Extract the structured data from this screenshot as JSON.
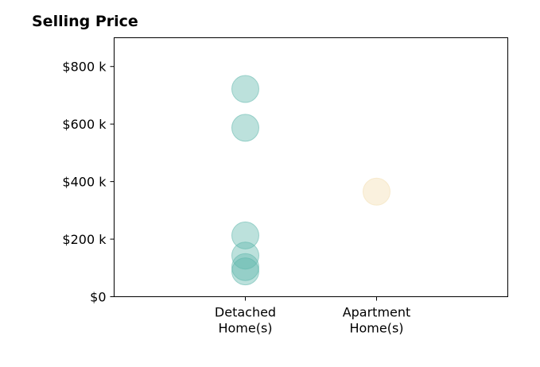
{
  "chart_data": {
    "type": "scatter",
    "title": "Selling Price",
    "xlabel": "",
    "ylabel": "",
    "categories": [
      "Detached\nHome(s)",
      "Apartment\nHome(s)"
    ],
    "xlim": [
      -1,
      2
    ],
    "ylim": [
      0,
      900000
    ],
    "yticks": [
      0,
      200000,
      400000,
      600000,
      800000
    ],
    "ytick_labels": [
      "$0",
      "$200 k",
      "$400 k",
      "$600 k",
      "$800 k"
    ],
    "grid": false,
    "series": [
      {
        "category": "Detached\nHome(s)",
        "color": "#5fb7ac",
        "values": [
          722000,
          587000,
          213000,
          143000,
          103000,
          88000
        ]
      },
      {
        "category": "Apartment\nHome(s)",
        "color": "#f3deb0",
        "values": [
          365000
        ]
      }
    ]
  }
}
